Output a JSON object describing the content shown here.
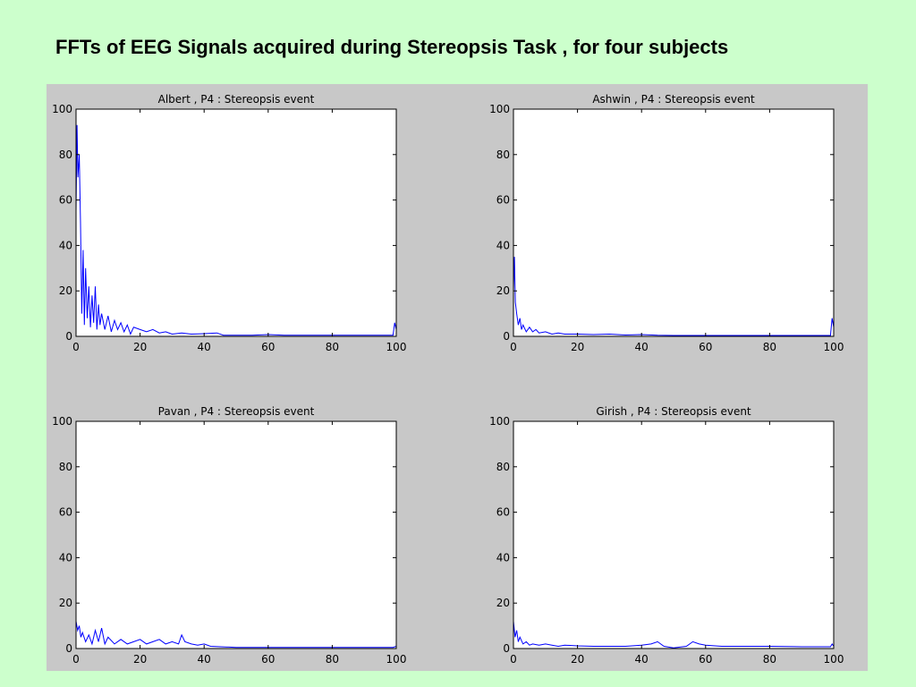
{
  "slide": {
    "title": "FFTs of EEG Signals acquired during Stereopsis Task , for four subjects",
    "background": "#ccffcc",
    "figure_background": "#c8c8c8",
    "line_color": "#0000ff"
  },
  "chart_data": [
    {
      "type": "line",
      "title": "Albert , P4 : Stereopsis event",
      "xlim": [
        0,
        100
      ],
      "ylim": [
        0,
        100
      ],
      "xticks": [
        0,
        20,
        40,
        60,
        80,
        100
      ],
      "yticks": [
        0,
        20,
        40,
        60,
        80,
        100
      ],
      "grid": false,
      "series": [
        {
          "color": "#0000ff",
          "x": [
            0,
            0.3,
            0.6,
            1,
            1.4,
            1.8,
            2.2,
            2.6,
            3,
            3.5,
            4,
            4.5,
            5,
            5.5,
            6,
            6.5,
            7,
            7.5,
            8,
            9,
            10,
            11,
            12,
            13,
            14,
            15,
            16,
            17,
            18,
            20,
            22,
            24,
            26,
            28,
            30,
            33,
            36,
            40,
            44,
            46,
            50,
            55,
            60,
            65,
            70,
            80,
            90,
            99,
            99.5,
            100
          ],
          "y": [
            55,
            93,
            70,
            80,
            50,
            10,
            38,
            5,
            30,
            8,
            22,
            4,
            18,
            6,
            22,
            3,
            14,
            5,
            10,
            3,
            9,
            2,
            7,
            3,
            6,
            2,
            5,
            1,
            4,
            3,
            2,
            3,
            1.5,
            2,
            1,
            1.5,
            1,
            1.2,
            1.5,
            0.5,
            0.5,
            0.5,
            0.8,
            0.5,
            0.5,
            0.5,
            0.5,
            0.5,
            6,
            3
          ]
        }
      ]
    },
    {
      "type": "line",
      "title": "Ashwin , P4 : Stereopsis event",
      "xlim": [
        0,
        100
      ],
      "ylim": [
        0,
        100
      ],
      "xticks": [
        0,
        20,
        40,
        60,
        80,
        100
      ],
      "yticks": [
        0,
        20,
        40,
        60,
        80,
        100
      ],
      "grid": false,
      "series": [
        {
          "color": "#0000ff",
          "x": [
            0,
            0.3,
            0.6,
            1,
            1.5,
            2,
            2.5,
            3,
            4,
            5,
            6,
            7,
            8,
            10,
            12,
            14,
            16,
            20,
            25,
            30,
            35,
            40,
            45,
            50,
            60,
            70,
            80,
            90,
            99,
            99.5,
            100
          ],
          "y": [
            20,
            35,
            15,
            10,
            5,
            8,
            3,
            5,
            2,
            4,
            2,
            3,
            1.5,
            2,
            1,
            1.5,
            1,
            1,
            0.8,
            1,
            0.6,
            0.8,
            0.5,
            0.4,
            0.4,
            0.4,
            0.4,
            0.4,
            0.4,
            8,
            4
          ]
        }
      ]
    },
    {
      "type": "line",
      "title": "Pavan , P4 : Stereopsis event",
      "xlim": [
        0,
        100
      ],
      "ylim": [
        0,
        100
      ],
      "xticks": [
        0,
        20,
        40,
        60,
        80,
        100
      ],
      "yticks": [
        0,
        20,
        40,
        60,
        80,
        100
      ],
      "grid": false,
      "series": [
        {
          "color": "#0000ff",
          "x": [
            0,
            0.5,
            1,
            1.5,
            2,
            3,
            4,
            5,
            6,
            7,
            8,
            9,
            10,
            12,
            14,
            16,
            18,
            20,
            22,
            24,
            26,
            28,
            30,
            32,
            33,
            34,
            36,
            38,
            40,
            42,
            45,
            50,
            60,
            70,
            80,
            90,
            99,
            100
          ],
          "y": [
            12,
            8,
            10,
            5,
            7,
            3,
            6,
            2,
            8,
            3,
            9,
            2,
            5,
            2,
            4,
            2,
            3,
            4,
            2,
            3,
            4,
            2,
            3,
            2,
            6,
            3,
            2,
            1.5,
            2,
            1,
            0.8,
            0.5,
            0.5,
            0.5,
            0.5,
            0.5,
            0.5,
            1
          ]
        }
      ]
    },
    {
      "type": "line",
      "title": "Girish , P4 : Stereopsis event",
      "xlim": [
        0,
        100
      ],
      "ylim": [
        0,
        100
      ],
      "xticks": [
        0,
        20,
        40,
        60,
        80,
        100
      ],
      "yticks": [
        0,
        20,
        40,
        60,
        80,
        100
      ],
      "grid": false,
      "series": [
        {
          "color": "#0000ff",
          "x": [
            0,
            0.5,
            1,
            1.5,
            2,
            3,
            4,
            5,
            6,
            8,
            10,
            12,
            14,
            16,
            20,
            25,
            30,
            35,
            40,
            43,
            45,
            47,
            50,
            54,
            56,
            58,
            60,
            65,
            70,
            80,
            90,
            99,
            99.5,
            100
          ],
          "y": [
            12,
            5,
            8,
            3,
            5,
            2,
            3,
            1.5,
            2,
            1.5,
            2,
            1.5,
            1,
            1.5,
            1.2,
            1,
            1,
            1,
            1.5,
            2,
            3,
            1,
            0.3,
            1,
            3,
            2,
            1.5,
            1,
            1,
            1,
            0.8,
            0.8,
            2,
            1
          ]
        }
      ]
    }
  ]
}
